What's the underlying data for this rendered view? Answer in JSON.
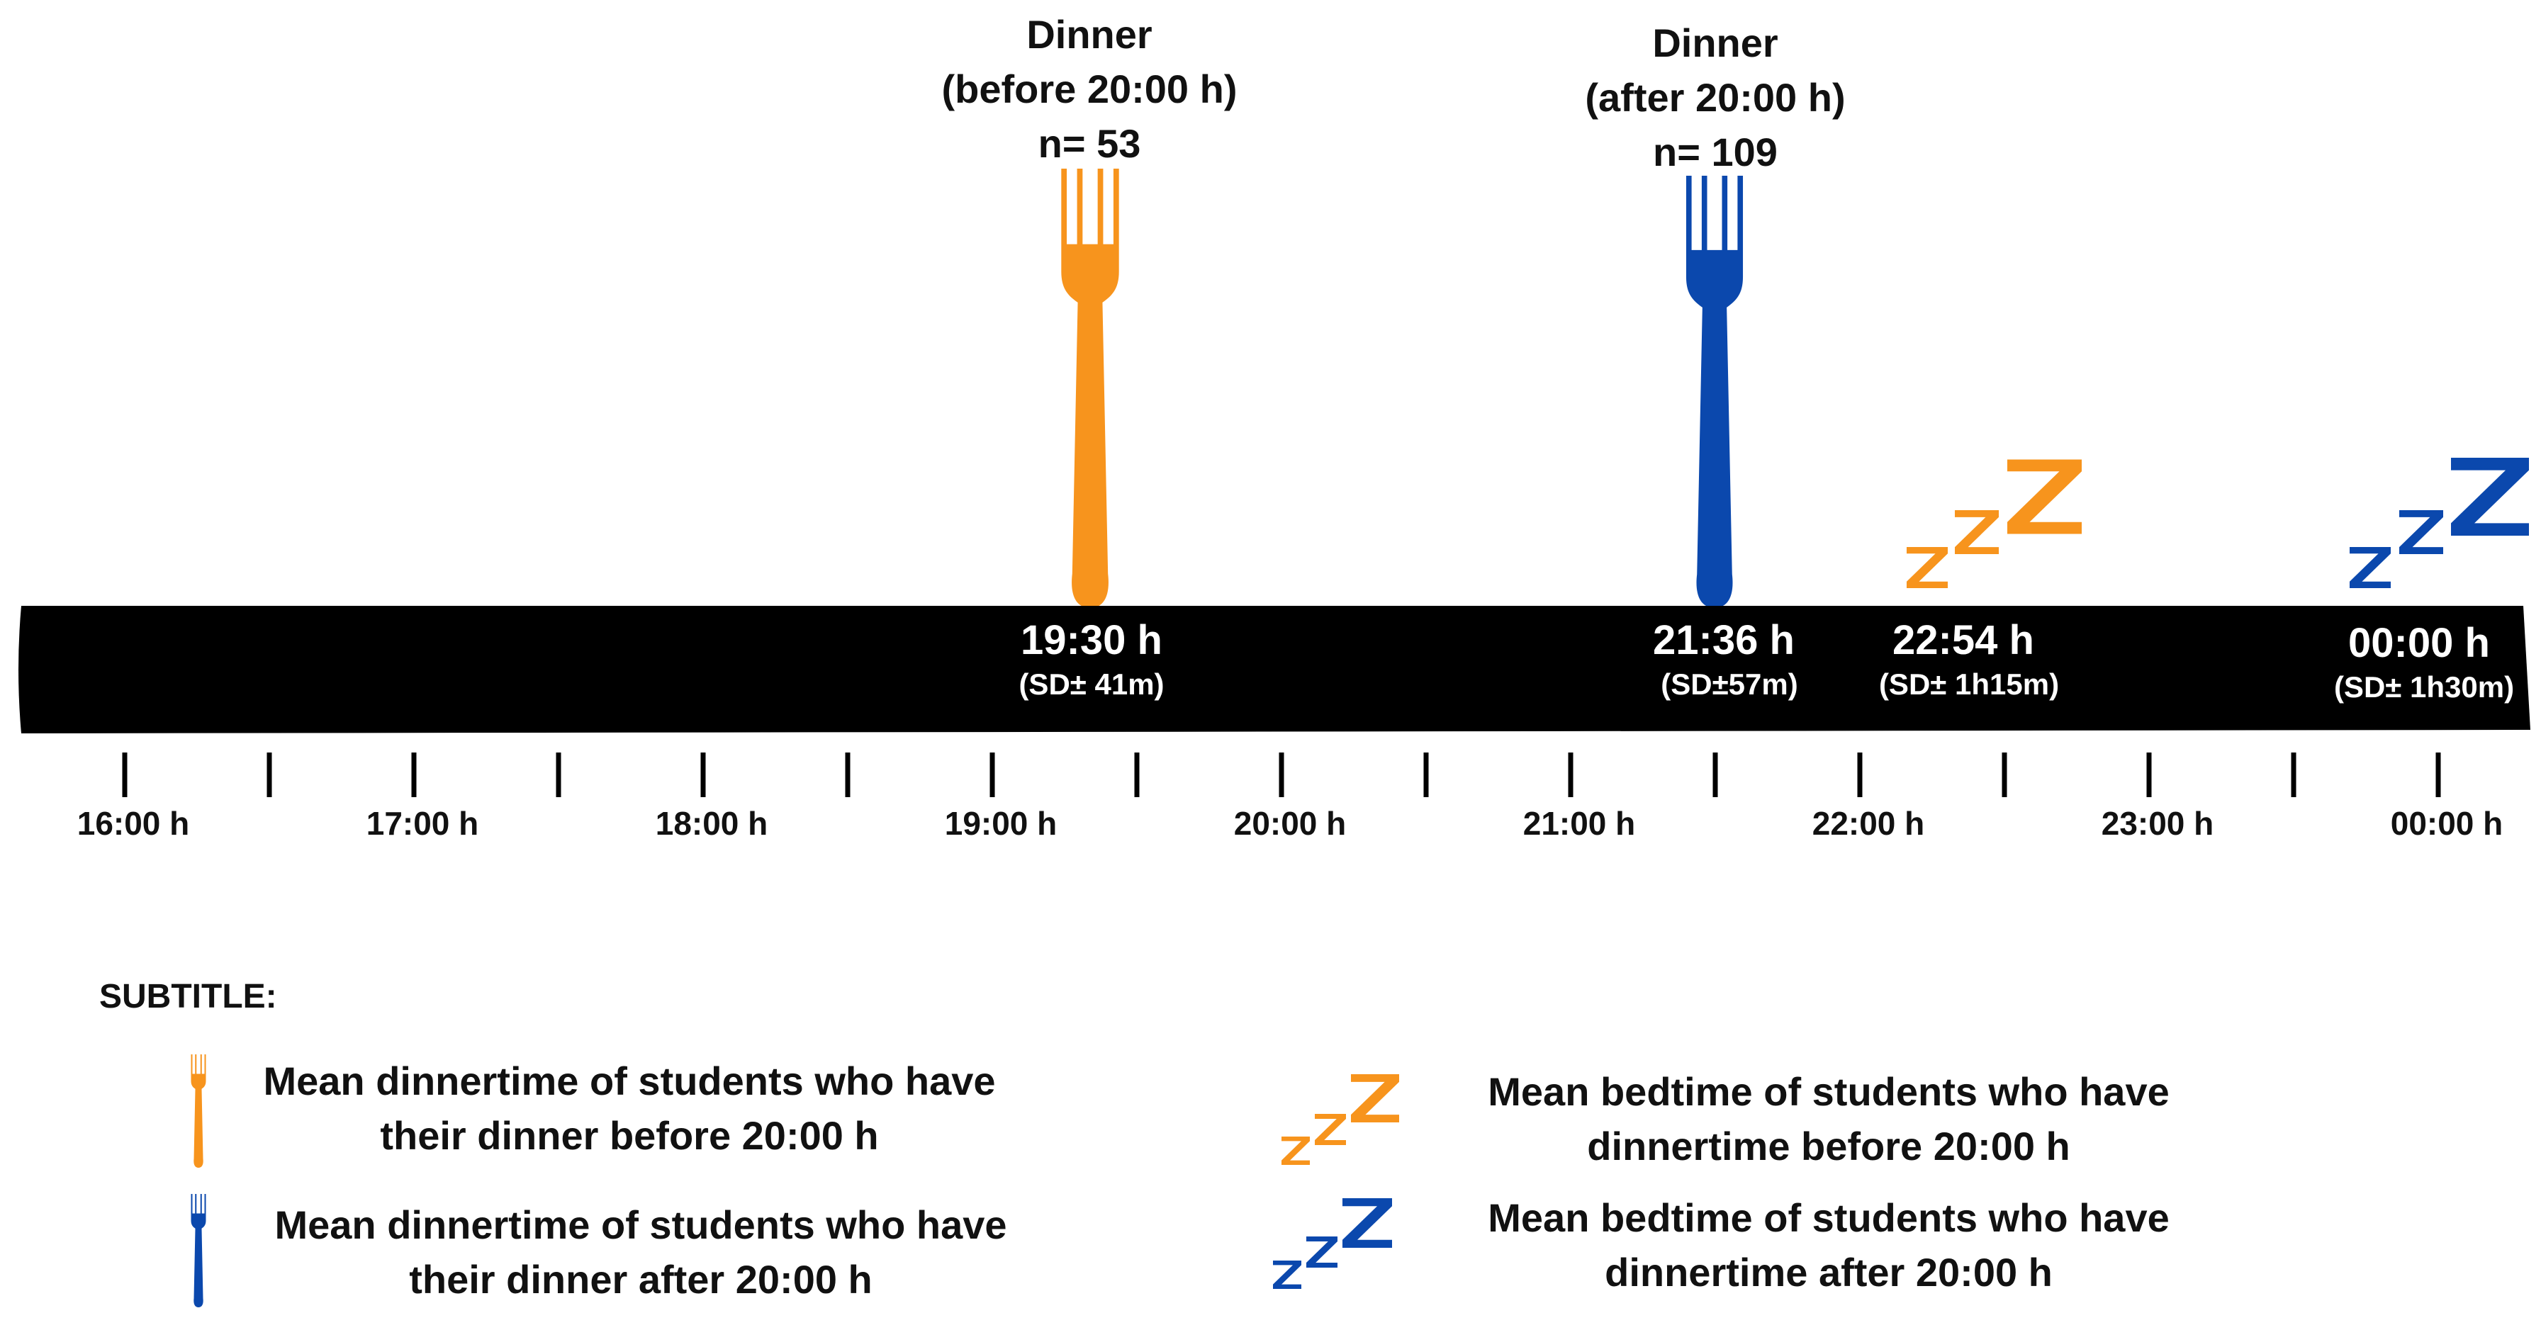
{
  "colors": {
    "orange": "#F7941D",
    "blue": "#0B48AD",
    "bar": "#000000",
    "text": "#111111",
    "white": "#FFFFFF"
  },
  "timeline": {
    "start_label": "16:00 h",
    "hour_labels": [
      "16:00 h",
      "17:00 h",
      "18:00 h",
      "19:00 h",
      "20:00 h",
      "21:00 h",
      "22:00 h",
      "23:00 h",
      "00:00 h"
    ]
  },
  "markers": {
    "dinner_before": {
      "title": "Dinner",
      "subtitle": "(before 20:00 h)",
      "n": "n= 53",
      "time": "19:30 h",
      "sd": "(SD± 41m)"
    },
    "dinner_after": {
      "title": "Dinner",
      "subtitle": "(after 20:00 h)",
      "n": "n= 109",
      "time": "21:36 h",
      "sd": "(SD±57m)"
    },
    "bed_before": {
      "time": "22:54 h",
      "sd": "(SD± 1h15m)"
    },
    "bed_after": {
      "time": "00:00 h",
      "sd": "(SD± 1h30m)"
    }
  },
  "legend": {
    "title": "SUBTITLE:",
    "dinner_before": [
      "Mean dinnertime of students who have",
      "their dinner before 20:00 h"
    ],
    "dinner_after": [
      "Mean  dinnertime of students who have",
      "their dinner after 20:00 h"
    ],
    "bed_before": [
      "Mean bedtime of students who have",
      "dinnertime before 20:00 h"
    ],
    "bed_after": [
      "Mean bedtime of students who have",
      "dinnertime after 20:00 h"
    ]
  },
  "icons": {
    "fork": "fork-icon",
    "sleep": "zzz-sleep-icon"
  }
}
